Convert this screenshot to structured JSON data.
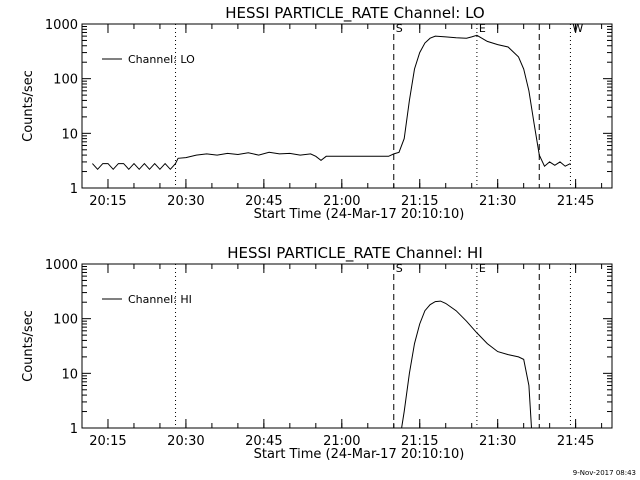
{
  "footer_stamp": "9-Nov-2017 08:43",
  "chart_data": [
    {
      "type": "line",
      "title": "HESSI PARTICLE_RATE Channel: LO",
      "xlabel": "Start Time (24-Mar-17 20:10:10)",
      "ylabel": "Counts/sec",
      "yscale": "log",
      "xlim": [
        "20:10",
        "21:52"
      ],
      "ylim": [
        1,
        1000
      ],
      "x_ticks": [
        "20:15",
        "20:30",
        "20:45",
        "21:00",
        "21:15",
        "21:30",
        "21:45"
      ],
      "y_ticks": [
        "1",
        "10",
        "100",
        "1000"
      ],
      "legend": {
        "position": "top-left",
        "entry": "Channel: LO"
      },
      "markers": [
        {
          "x": "21:10",
          "label": "S",
          "style": "dashed"
        },
        {
          "x": "21:26",
          "label": "E",
          "style": "dotted"
        },
        {
          "x": "21:38",
          "label": "",
          "style": "dashed"
        },
        {
          "x": "21:44",
          "label": "W",
          "style": "dotted"
        },
        {
          "x": "20:28",
          "label": "",
          "style": "dotted"
        }
      ],
      "series": [
        {
          "values": [
            [
              "20:12",
              2.8
            ],
            [
              "20:13",
              2.2
            ],
            [
              "20:14",
              2.8
            ],
            [
              "20:15",
              2.8
            ],
            [
              "20:16",
              2.2
            ],
            [
              "20:17",
              2.8
            ],
            [
              "20:18",
              2.8
            ],
            [
              "20:19",
              2.2
            ],
            [
              "20:20",
              2.8
            ],
            [
              "20:21",
              2.2
            ],
            [
              "20:22",
              2.8
            ],
            [
              "20:23",
              2.2
            ],
            [
              "20:24",
              2.8
            ],
            [
              "20:25",
              2.2
            ],
            [
              "20:26",
              2.8
            ],
            [
              "20:27",
              2.2
            ],
            [
              "20:28",
              2.8
            ],
            [
              "20:28.5",
              3.5
            ],
            [
              "20:30",
              3.6
            ],
            [
              "20:32",
              4.0
            ],
            [
              "20:34",
              4.2
            ],
            [
              "20:36",
              4.0
            ],
            [
              "20:38",
              4.3
            ],
            [
              "20:40",
              4.1
            ],
            [
              "20:42",
              4.4
            ],
            [
              "20:44",
              4.0
            ],
            [
              "20:46",
              4.5
            ],
            [
              "20:48",
              4.2
            ],
            [
              "20:50",
              4.3
            ],
            [
              "20:52",
              4.0
            ],
            [
              "20:54",
              4.2
            ],
            [
              "20:55",
              3.8
            ],
            [
              "20:56",
              3.2
            ],
            [
              "20:57",
              3.8
            ],
            [
              "21:00",
              3.8
            ],
            [
              "21:05",
              3.8
            ],
            [
              "21:09",
              3.8
            ],
            [
              "21:10",
              4.2
            ],
            [
              "21:11",
              4.5
            ],
            [
              "21:12",
              8
            ],
            [
              "21:13",
              40
            ],
            [
              "21:14",
              150
            ],
            [
              "21:15",
              300
            ],
            [
              "21:16",
              450
            ],
            [
              "21:17",
              550
            ],
            [
              "21:18",
              600
            ],
            [
              "21:20",
              580
            ],
            [
              "21:22",
              560
            ],
            [
              "21:24",
              550
            ],
            [
              "21:25",
              580
            ],
            [
              "21:26",
              620
            ],
            [
              "21:28",
              480
            ],
            [
              "21:30",
              420
            ],
            [
              "21:32",
              380
            ],
            [
              "21:34",
              250
            ],
            [
              "21:35",
              150
            ],
            [
              "21:36",
              60
            ],
            [
              "21:37",
              15
            ],
            [
              "21:38",
              4
            ],
            [
              "21:39",
              2.5
            ],
            [
              "21:40",
              3.0
            ],
            [
              "21:41",
              2.6
            ],
            [
              "21:42",
              3.0
            ],
            [
              "21:43",
              2.5
            ],
            [
              "21:44",
              2.8
            ]
          ]
        }
      ]
    },
    {
      "type": "line",
      "title": "HESSI PARTICLE_RATE Channel: HI",
      "xlabel": "Start Time (24-Mar-17 20:10:10)",
      "ylabel": "Counts/sec",
      "yscale": "log",
      "xlim": [
        "20:10",
        "21:52"
      ],
      "ylim": [
        1,
        1000
      ],
      "x_ticks": [
        "20:15",
        "20:30",
        "20:45",
        "21:00",
        "21:15",
        "21:30",
        "21:45"
      ],
      "y_ticks": [
        "1",
        "10",
        "100",
        "1000"
      ],
      "legend": {
        "position": "top-left",
        "entry": "Channel: HI"
      },
      "markers": [
        {
          "x": "21:10",
          "label": "S",
          "style": "dashed"
        },
        {
          "x": "21:26",
          "label": "E",
          "style": "dotted"
        },
        {
          "x": "21:38",
          "label": "",
          "style": "dashed"
        },
        {
          "x": "21:44",
          "label": "",
          "style": "dotted"
        },
        {
          "x": "20:28",
          "label": "",
          "style": "dotted"
        }
      ],
      "series": [
        {
          "values": [
            [
              "21:11.5",
              1
            ],
            [
              "21:12",
              2
            ],
            [
              "21:13",
              10
            ],
            [
              "21:14",
              35
            ],
            [
              "21:15",
              80
            ],
            [
              "21:16",
              140
            ],
            [
              "21:17",
              180
            ],
            [
              "21:18",
              205
            ],
            [
              "21:19",
              210
            ],
            [
              "21:20",
              190
            ],
            [
              "21:22",
              140
            ],
            [
              "21:24",
              90
            ],
            [
              "21:26",
              55
            ],
            [
              "21:28",
              35
            ],
            [
              "21:30",
              25
            ],
            [
              "21:32",
              22
            ],
            [
              "21:34",
              20
            ],
            [
              "21:35",
              18
            ],
            [
              "21:36",
              6
            ],
            [
              "21:36.5",
              1
            ]
          ]
        }
      ]
    }
  ]
}
